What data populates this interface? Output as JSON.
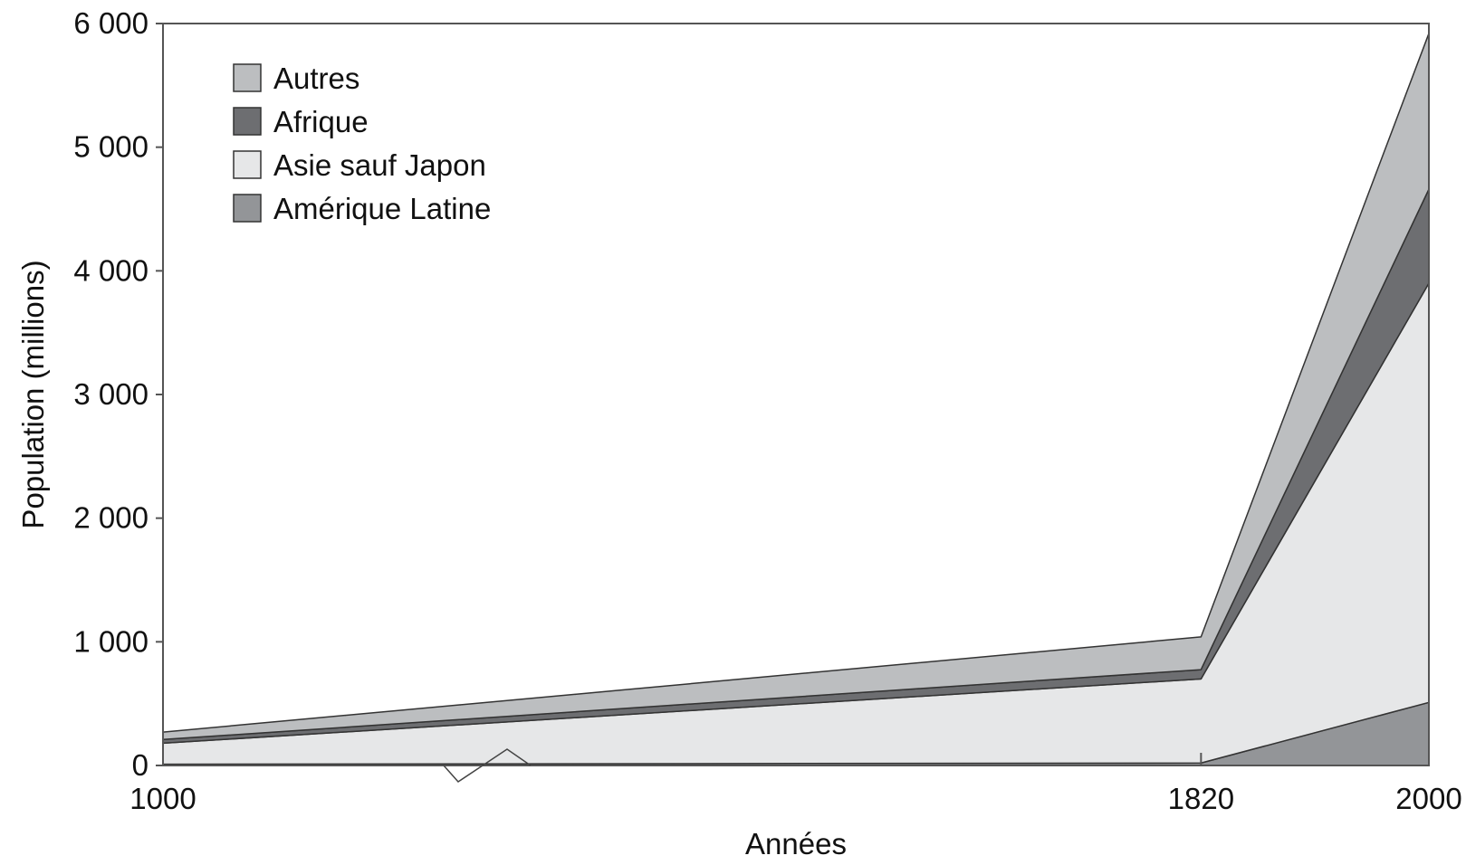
{
  "chart_data": {
    "type": "area",
    "stacked": true,
    "x": [
      1000,
      1820,
      2000
    ],
    "xlabel": "Années",
    "ylabel": "Population (millions)",
    "xlim": [
      1000,
      2000
    ],
    "ylim": [
      0,
      6000
    ],
    "x_ticks": [
      "1000",
      "1820",
      "2000"
    ],
    "y_ticks": [
      "0",
      "1 000",
      "2 000",
      "3 000",
      "4 000",
      "5 000",
      "6 000"
    ],
    "y_tick_values": [
      0,
      1000,
      2000,
      3000,
      4000,
      5000,
      6000
    ],
    "grid": false,
    "legend_position": "top-left",
    "series": [
      {
        "name": "Amérique Latine",
        "values": [
          10,
          20,
          510
        ],
        "color": "#939598"
      },
      {
        "name": "Asie sauf Japon",
        "values": [
          170,
          680,
          3390
        ],
        "color": "#e6e7e8"
      },
      {
        "name": "Afrique",
        "values": [
          30,
          75,
          760
        ],
        "color": "#6d6e71"
      },
      {
        "name": "Autres",
        "values": [
          60,
          265,
          1260
        ],
        "color": "#bcbec0"
      }
    ],
    "legend_order": [
      "Autres",
      "Afrique",
      "Asie sauf Japon",
      "Amérique Latine"
    ]
  }
}
